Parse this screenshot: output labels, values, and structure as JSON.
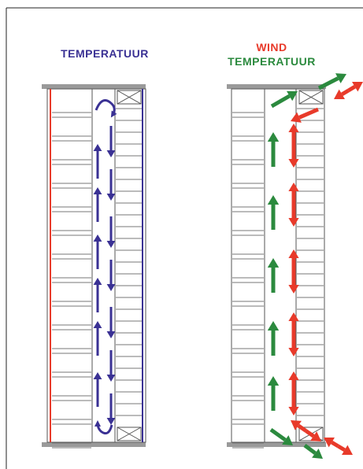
{
  "left_panel": {
    "title": "TEMPERATUUR",
    "arrow_color": "#3a3194",
    "wall_color": "#e83a2a",
    "hatch_color": "#3a3194"
  },
  "right_panel": {
    "title_wind": "WIND",
    "title_temperature": "TEMPERATUUR",
    "wind_color": "#e83a2a",
    "temperature_color": "#2b8a3e"
  },
  "colors": {
    "slab": "#9a9a9a",
    "lines": "#555555",
    "frame": "#222222"
  }
}
